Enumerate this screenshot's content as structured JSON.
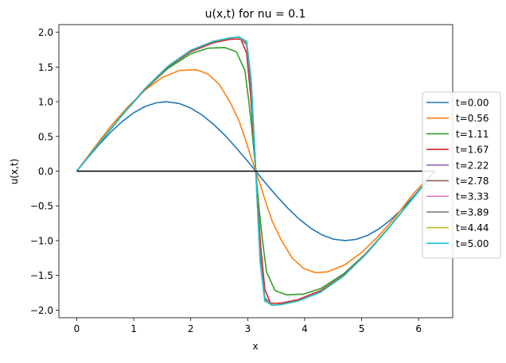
{
  "chart_data": {
    "type": "line",
    "title": "u(x,t) for nu = 0.1",
    "xlabel": "x",
    "ylabel": "u(x,t)",
    "xlim": [
      -0.314,
      6.597
    ],
    "ylim": [
      -2.11,
      2.11
    ],
    "xticks": [
      0,
      1,
      2,
      3,
      4,
      5,
      6
    ],
    "xtick_labels": [
      "0",
      "1",
      "2",
      "3",
      "4",
      "5",
      "6"
    ],
    "yticks": [
      -2.0,
      -1.5,
      -1.0,
      -0.5,
      0.0,
      0.5,
      1.0,
      1.5,
      2.0
    ],
    "ytick_labels": [
      "−2.0",
      "−1.5",
      "−1.0",
      "−0.5",
      "0.0",
      "0.5",
      "1.0",
      "1.5",
      "2.0"
    ],
    "grid": false,
    "legend_position": "right",
    "baseline": {
      "y": 0,
      "color": "#000000"
    },
    "series": [
      {
        "name": "t=0.00",
        "color": "#1f77b4",
        "x": [
          0,
          0.2,
          0.4,
          0.6,
          0.8,
          1.0,
          1.2,
          1.4,
          1.571,
          1.8,
          2.0,
          2.2,
          2.4,
          2.6,
          2.8,
          3.0,
          3.1416,
          3.3,
          3.5,
          3.7,
          3.9,
          4.1,
          4.3,
          4.5,
          4.712,
          4.9,
          5.1,
          5.3,
          5.5,
          5.7,
          5.9,
          6.1,
          6.2832
        ],
        "y": [
          0,
          0.199,
          0.389,
          0.565,
          0.717,
          0.841,
          0.932,
          0.985,
          1.0,
          0.974,
          0.909,
          0.808,
          0.675,
          0.516,
          0.335,
          0.141,
          0,
          -0.158,
          -0.351,
          -0.53,
          -0.688,
          -0.818,
          -0.916,
          -0.978,
          -1.0,
          -0.982,
          -0.926,
          -0.832,
          -0.706,
          -0.551,
          -0.374,
          -0.182,
          0
        ]
      },
      {
        "name": "t=0.56",
        "color": "#ff7f0e",
        "x": [
          0,
          0.3,
          0.6,
          0.9,
          1.2,
          1.5,
          1.8,
          2.1,
          2.3,
          2.5,
          2.7,
          2.85,
          2.95,
          3.05,
          3.1416,
          3.23,
          3.33,
          3.43,
          3.58,
          3.78,
          3.98,
          4.18,
          4.4,
          4.7,
          5.0,
          5.3,
          5.6,
          5.9,
          6.2832
        ],
        "y": [
          0,
          0.33,
          0.65,
          0.93,
          1.17,
          1.35,
          1.45,
          1.46,
          1.4,
          1.25,
          0.98,
          0.72,
          0.48,
          0.22,
          0,
          -0.22,
          -0.48,
          -0.72,
          -0.98,
          -1.25,
          -1.4,
          -1.46,
          -1.45,
          -1.35,
          -1.17,
          -0.93,
          -0.65,
          -0.33,
          0
        ]
      },
      {
        "name": "t=1.11",
        "color": "#2ca02c",
        "x": [
          0,
          0.4,
          0.8,
          1.2,
          1.6,
          2.0,
          2.3,
          2.6,
          2.8,
          2.95,
          3.02,
          3.08,
          3.1416,
          3.2,
          3.26,
          3.33,
          3.48,
          3.68,
          3.98,
          4.28,
          4.68,
          5.08,
          5.48,
          5.88,
          6.2832
        ],
        "y": [
          0,
          0.41,
          0.81,
          1.18,
          1.48,
          1.69,
          1.77,
          1.78,
          1.72,
          1.45,
          1.0,
          0.55,
          0,
          -0.55,
          -1.0,
          -1.45,
          -1.72,
          -1.78,
          -1.77,
          -1.69,
          -1.48,
          -1.18,
          -0.81,
          -0.41,
          0
        ]
      },
      {
        "name": "t=1.67",
        "color": "#d62728",
        "x": [
          0,
          0.4,
          0.8,
          1.2,
          1.6,
          2.0,
          2.4,
          2.7,
          2.88,
          2.98,
          3.05,
          3.1,
          3.1416,
          3.18,
          3.23,
          3.3,
          3.4,
          3.58,
          3.88,
          4.28,
          4.68,
          5.08,
          5.48,
          5.88,
          6.2832
        ],
        "y": [
          0,
          0.41,
          0.81,
          1.18,
          1.5,
          1.72,
          1.85,
          1.9,
          1.9,
          1.7,
          1.1,
          0.5,
          0,
          -0.5,
          -1.1,
          -1.7,
          -1.9,
          -1.9,
          -1.85,
          -1.72,
          -1.5,
          -1.18,
          -0.81,
          -0.41,
          0
        ]
      },
      {
        "name": "t=2.22",
        "color": "#9467bd",
        "x": [
          0,
          0.4,
          0.8,
          1.2,
          1.6,
          2.0,
          2.4,
          2.7,
          2.85,
          2.98,
          3.06,
          3.1,
          3.1416,
          3.18,
          3.22,
          3.3,
          3.43,
          3.58,
          3.88,
          4.28,
          4.68,
          5.08,
          5.48,
          5.88,
          6.2832
        ],
        "y": [
          0,
          0.41,
          0.81,
          1.19,
          1.51,
          1.74,
          1.87,
          1.92,
          1.93,
          1.82,
          1.2,
          0.6,
          0,
          -0.6,
          -1.2,
          -1.82,
          -1.93,
          -1.92,
          -1.87,
          -1.74,
          -1.51,
          -1.19,
          -0.81,
          -0.41,
          0
        ]
      },
      {
        "name": "t=2.78",
        "color": "#8c564b",
        "x": [
          0,
          0.4,
          0.8,
          1.2,
          1.6,
          2.0,
          2.4,
          2.7,
          2.85,
          2.98,
          3.06,
          3.1,
          3.1416,
          3.18,
          3.22,
          3.3,
          3.43,
          3.58,
          3.88,
          4.28,
          4.68,
          5.08,
          5.48,
          5.88,
          6.2832
        ],
        "y": [
          0,
          0.41,
          0.81,
          1.19,
          1.51,
          1.74,
          1.87,
          1.92,
          1.93,
          1.84,
          1.25,
          0.62,
          0,
          -0.62,
          -1.25,
          -1.84,
          -1.93,
          -1.92,
          -1.87,
          -1.74,
          -1.51,
          -1.19,
          -0.81,
          -0.41,
          0
        ]
      },
      {
        "name": "t=3.33",
        "color": "#e377c2",
        "x": [
          0,
          0.4,
          0.8,
          1.2,
          1.6,
          2.0,
          2.4,
          2.7,
          2.85,
          2.98,
          3.06,
          3.1,
          3.1416,
          3.18,
          3.22,
          3.3,
          3.43,
          3.58,
          3.88,
          4.28,
          4.68,
          5.08,
          5.48,
          5.88,
          6.2832
        ],
        "y": [
          0,
          0.41,
          0.81,
          1.19,
          1.51,
          1.74,
          1.87,
          1.92,
          1.93,
          1.85,
          1.28,
          0.64,
          0,
          -0.64,
          -1.28,
          -1.85,
          -1.93,
          -1.92,
          -1.87,
          -1.74,
          -1.51,
          -1.19,
          -0.81,
          -0.41,
          0
        ]
      },
      {
        "name": "t=3.89",
        "color": "#7f7f7f",
        "x": [
          0,
          0.4,
          0.8,
          1.2,
          1.6,
          2.0,
          2.4,
          2.7,
          2.85,
          2.98,
          3.06,
          3.1,
          3.1416,
          3.18,
          3.22,
          3.3,
          3.43,
          3.58,
          3.88,
          4.28,
          4.68,
          5.08,
          5.48,
          5.88,
          6.2832
        ],
        "y": [
          0,
          0.41,
          0.81,
          1.19,
          1.51,
          1.74,
          1.87,
          1.92,
          1.93,
          1.86,
          1.3,
          0.65,
          0,
          -0.65,
          -1.3,
          -1.86,
          -1.93,
          -1.92,
          -1.87,
          -1.74,
          -1.51,
          -1.19,
          -0.81,
          -0.41,
          0
        ]
      },
      {
        "name": "t=4.44",
        "color": "#bcbd22",
        "x": [
          0,
          0.4,
          0.8,
          1.2,
          1.6,
          2.0,
          2.4,
          2.7,
          2.85,
          2.98,
          3.06,
          3.1,
          3.1416,
          3.18,
          3.22,
          3.3,
          3.43,
          3.58,
          3.88,
          4.28,
          4.68,
          5.08,
          5.48,
          5.88,
          6.2832
        ],
        "y": [
          0,
          0.41,
          0.81,
          1.19,
          1.51,
          1.74,
          1.87,
          1.92,
          1.93,
          1.86,
          1.31,
          0.66,
          0,
          -0.66,
          -1.31,
          -1.86,
          -1.93,
          -1.92,
          -1.87,
          -1.74,
          -1.51,
          -1.19,
          -0.81,
          -0.41,
          0
        ]
      },
      {
        "name": "t=5.00",
        "color": "#17becf",
        "x": [
          0,
          0.4,
          0.8,
          1.2,
          1.6,
          2.0,
          2.4,
          2.7,
          2.85,
          2.98,
          3.06,
          3.1,
          3.1416,
          3.18,
          3.22,
          3.3,
          3.43,
          3.58,
          3.88,
          4.28,
          4.68,
          5.08,
          5.48,
          5.88,
          6.2832
        ],
        "y": [
          0,
          0.41,
          0.81,
          1.19,
          1.51,
          1.74,
          1.87,
          1.92,
          1.93,
          1.87,
          1.32,
          0.66,
          0,
          -0.66,
          -1.32,
          -1.87,
          -1.93,
          -1.92,
          -1.87,
          -1.74,
          -1.51,
          -1.19,
          -0.81,
          -0.41,
          0
        ]
      }
    ]
  }
}
